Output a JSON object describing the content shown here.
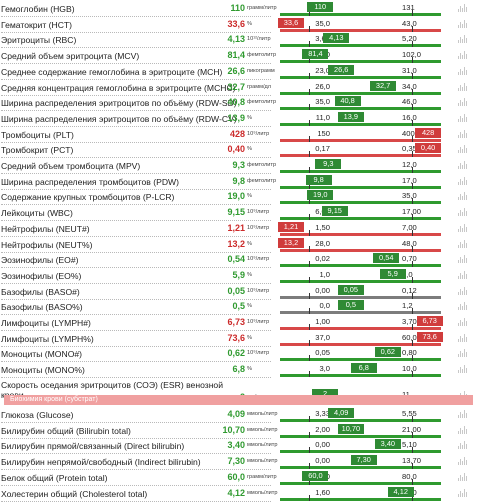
{
  "section_label": "Биохимия крови (субстрат)",
  "rows": [
    {
      "name": "Гемоглобин (HGB)",
      "value": "110",
      "status": "ok",
      "unit": "грамм/литр",
      "lo": "107",
      "hi": "131",
      "mark": "110",
      "scale": "green",
      "mark_side": "mid",
      "lo_frac": 0.18,
      "hi_frac": 0.82,
      "val_frac": 0.25
    },
    {
      "name": "Гематокрит (HCT)",
      "value": "33,6",
      "status": "bad",
      "unit": "%",
      "lo": "35,0",
      "hi": "43,0",
      "mark": "33,6",
      "scale": "red",
      "mark_side": "left",
      "lo_frac": 0.18,
      "hi_frac": 0.82,
      "val_frac": 0.06
    },
    {
      "name": "Эритроциты (RBC)",
      "value": "4,13",
      "status": "ok",
      "unit": "10¹²/литр",
      "lo": "3,60",
      "hi": "5,20",
      "mark": "4,13",
      "scale": "green",
      "mark_side": "mid",
      "lo_frac": 0.18,
      "hi_frac": 0.82,
      "val_frac": 0.35
    },
    {
      "name": "Средний объем эритроцита (MCV)",
      "value": "81,4",
      "status": "ok",
      "unit": "фемтолитр",
      "lo": "74,0",
      "hi": "102,0",
      "mark": "81,4",
      "scale": "green",
      "mark_side": "mid",
      "lo_frac": 0.18,
      "hi_frac": 0.82,
      "val_frac": 0.22
    },
    {
      "name": "Среднее содержание гемоглобина в эритроците (MCH)",
      "value": "26,6",
      "status": "ok",
      "unit": "пикограмм",
      "lo": "23,0",
      "hi": "31,0",
      "mark": "26,6",
      "scale": "green",
      "mark_side": "mid",
      "lo_frac": 0.18,
      "hi_frac": 0.82,
      "val_frac": 0.38
    },
    {
      "name": "Средняя концентрация гемоглобина в эритроците (MCHC)",
      "value": "32,7",
      "status": "ok",
      "unit": "грамм/дл",
      "lo": "26,0",
      "hi": "34,0",
      "mark": "32,7",
      "scale": "green",
      "mark_side": "mid",
      "lo_frac": 0.18,
      "hi_frac": 0.82,
      "val_frac": 0.64
    },
    {
      "name": "Ширина распределения эритроцитов по объёму (RDW-SD)",
      "value": "40,8",
      "status": "ok",
      "unit": "фемтолитр",
      "lo": "35,0",
      "hi": "46,0",
      "mark": "40,8",
      "scale": "green",
      "mark_side": "mid",
      "lo_frac": 0.18,
      "hi_frac": 0.82,
      "val_frac": 0.42
    },
    {
      "name": "Ширина распределения эритроцитов по объёму (RDW-CV)",
      "value": "13,9",
      "status": "ok",
      "unit": "%",
      "lo": "11,0",
      "hi": "16,0",
      "mark": "13,9",
      "scale": "green",
      "mark_side": "mid",
      "lo_frac": 0.18,
      "hi_frac": 0.82,
      "val_frac": 0.44
    },
    {
      "name": "Тромбоциты (PLT)",
      "value": "428",
      "status": "bad",
      "unit": "10⁹/литр",
      "lo": "150",
      "hi": "400",
      "mark": "428",
      "scale": "red",
      "mark_side": "right",
      "lo_frac": 0.18,
      "hi_frac": 0.82,
      "val_frac": 0.92
    },
    {
      "name": "Тромбокрит (PCT)",
      "value": "0,40",
      "status": "bad",
      "unit": "%",
      "lo": "0,17",
      "hi": "0,35",
      "mark": "0,40",
      "scale": "red",
      "mark_side": "right",
      "lo_frac": 0.18,
      "hi_frac": 0.82,
      "val_frac": 0.92
    },
    {
      "name": "Средний объем тромбоцита (MPV)",
      "value": "9,3",
      "status": "ok",
      "unit": "фемтолитр",
      "lo": "8,0",
      "hi": "12,0",
      "mark": "9,3",
      "scale": "green",
      "mark_side": "mid",
      "lo_frac": 0.18,
      "hi_frac": 0.82,
      "val_frac": 0.3
    },
    {
      "name": "Ширина распределения тромбоцитов (PDW)",
      "value": "9,8",
      "status": "ok",
      "unit": "фемтолитр",
      "lo": "9,0",
      "hi": "17,0",
      "mark": "9,8",
      "scale": "green",
      "mark_side": "mid",
      "lo_frac": 0.18,
      "hi_frac": 0.82,
      "val_frac": 0.24
    },
    {
      "name": "Содержание крупных тромбоцитов (P-LCR)",
      "value": "19,0",
      "status": "ok",
      "unit": "%",
      "lo": "15,0",
      "hi": "35,0",
      "mark": "19,0",
      "scale": "green",
      "mark_side": "mid",
      "lo_frac": 0.18,
      "hi_frac": 0.82,
      "val_frac": 0.25
    },
    {
      "name": "Лейкоциты (WBC)",
      "value": "9,15",
      "status": "ok",
      "unit": "10⁹/литр",
      "lo": "6,00",
      "hi": "17,00",
      "mark": "9,15",
      "scale": "green",
      "mark_side": "mid",
      "lo_frac": 0.18,
      "hi_frac": 0.82,
      "val_frac": 0.34
    },
    {
      "name": "Нейтрофилы (NEUT#)",
      "value": "1,21",
      "status": "bad",
      "unit": "10⁹/литр",
      "lo": "1,50",
      "hi": "7,00",
      "mark": "1,21",
      "scale": "red",
      "mark_side": "left",
      "lo_frac": 0.18,
      "hi_frac": 0.82,
      "val_frac": 0.05
    },
    {
      "name": "Нейтрофилы (NEUT%)",
      "value": "13,2",
      "status": "bad",
      "unit": "%",
      "lo": "28,0",
      "hi": "48,0",
      "mark": "13,2",
      "scale": "red",
      "mark_side": "left",
      "lo_frac": 0.18,
      "hi_frac": 0.82,
      "val_frac": 0.05
    },
    {
      "name": "Эозинофилы (EO#)",
      "value": "0,54",
      "status": "ok",
      "unit": "10⁹/литр",
      "lo": "0,02",
      "hi": "0,70",
      "mark": "0,54",
      "scale": "green",
      "mark_side": "mid",
      "lo_frac": 0.18,
      "hi_frac": 0.82,
      "val_frac": 0.66
    },
    {
      "name": "Эозинофилы (EO%)",
      "value": "5,9",
      "status": "ok",
      "unit": "%",
      "lo": "1,0",
      "hi": "7,0",
      "mark": "5,9",
      "scale": "green",
      "mark_side": "mid",
      "lo_frac": 0.18,
      "hi_frac": 0.82,
      "val_frac": 0.7
    },
    {
      "name": "Базофилы (BASO#)",
      "value": "0,05",
      "status": "ok",
      "unit": "10⁹/литр",
      "lo": "0,00",
      "hi": "0,12",
      "mark": "0,05",
      "scale": "grey",
      "mark_side": "mid",
      "lo_frac": 0.18,
      "hi_frac": 0.82,
      "val_frac": 0.44
    },
    {
      "name": "Базофилы (BASO%)",
      "value": "0,5",
      "status": "ok",
      "unit": "%",
      "lo": "0,0",
      "hi": "1,2",
      "mark": "0,5",
      "scale": "grey",
      "mark_side": "mid",
      "lo_frac": 0.18,
      "hi_frac": 0.82,
      "val_frac": 0.44
    },
    {
      "name": "Лимфоциты (LYMPH#)",
      "value": "6,73",
      "status": "bad",
      "unit": "10⁹/литр",
      "lo": "1,00",
      "hi": "3,70",
      "mark": "6,73",
      "scale": "red",
      "mark_side": "right",
      "lo_frac": 0.18,
      "hi_frac": 0.82,
      "val_frac": 0.93
    },
    {
      "name": "Лимфоциты (LYMPH%)",
      "value": "73,6",
      "status": "bad",
      "unit": "%",
      "lo": "37,0",
      "hi": "60,0",
      "mark": "73,6",
      "scale": "red",
      "mark_side": "right",
      "lo_frac": 0.18,
      "hi_frac": 0.82,
      "val_frac": 0.93
    },
    {
      "name": "Моноциты (MONO#)",
      "value": "0,62",
      "status": "ok",
      "unit": "10⁹/литр",
      "lo": "0,05",
      "hi": "0,80",
      "mark": "0,62",
      "scale": "green",
      "mark_side": "mid",
      "lo_frac": 0.18,
      "hi_frac": 0.82,
      "val_frac": 0.67
    },
    {
      "name": "Моноциты (MONO%)",
      "value": "6,8",
      "status": "ok",
      "unit": "%",
      "lo": "3,0",
      "hi": "10,0",
      "mark": "6,8",
      "scale": "green",
      "mark_side": "mid",
      "lo_frac": 0.18,
      "hi_frac": 0.82,
      "val_frac": 0.52
    },
    {
      "name": "Скорость оседания эритроцитов (СОЭ) (ESR) венозной крови",
      "value": "2",
      "status": "ok",
      "unit": "мм/час",
      "lo": "0",
      "hi": "11",
      "mark": "2",
      "scale": "green",
      "mark_side": "mid",
      "lo_frac": 0.18,
      "hi_frac": 0.82,
      "val_frac": 0.28,
      "tall": true
    },
    {
      "name": "Глюкоза (Glucose)",
      "value": "4,09",
      "status": "ok",
      "unit": "ммоль/литр",
      "lo": "3,33",
      "hi": "5,55",
      "mark": "4,09",
      "scale": "green",
      "mark_side": "mid",
      "lo_frac": 0.18,
      "hi_frac": 0.82,
      "val_frac": 0.38
    },
    {
      "name": "Билирубин общий (Bilirubin total)",
      "value": "10,70",
      "status": "ok",
      "unit": "ммоль/литр",
      "lo": "2,00",
      "hi": "21,00",
      "mark": "10,70",
      "scale": "green",
      "mark_side": "mid",
      "lo_frac": 0.18,
      "hi_frac": 0.82,
      "val_frac": 0.44
    },
    {
      "name": "Билирубин прямой/связанный (Direct bilirubin)",
      "value": "3,40",
      "status": "ok",
      "unit": "ммоль/литр",
      "lo": "0,00",
      "hi": "5,10",
      "mark": "3,40",
      "scale": "green",
      "mark_side": "mid",
      "lo_frac": 0.18,
      "hi_frac": 0.82,
      "val_frac": 0.67
    },
    {
      "name": "Билирубин непрямой/свободный (Indirect bilirubin)",
      "value": "7,30",
      "status": "ok",
      "unit": "ммоль/литр",
      "lo": "0,00",
      "hi": "13,70",
      "mark": "7,30",
      "scale": "green",
      "mark_side": "mid",
      "lo_frac": 0.18,
      "hi_frac": 0.82,
      "val_frac": 0.52
    },
    {
      "name": "Белок общий (Protein total)",
      "value": "60,0",
      "status": "ok",
      "unit": "грамм/литр",
      "lo": "60,0",
      "hi": "80,0",
      "mark": "60,0",
      "scale": "green",
      "mark_side": "mid",
      "lo_frac": 0.18,
      "hi_frac": 0.82,
      "val_frac": 0.22
    },
    {
      "name": "Холестерин общий (Cholesterol total)",
      "value": "4,12",
      "status": "ok",
      "unit": "ммоль/литр",
      "lo": "1,60",
      "hi": "4,90",
      "mark": "4,12",
      "scale": "green",
      "mark_side": "mid",
      "lo_frac": 0.18,
      "hi_frac": 0.82,
      "val_frac": 0.75
    }
  ]
}
